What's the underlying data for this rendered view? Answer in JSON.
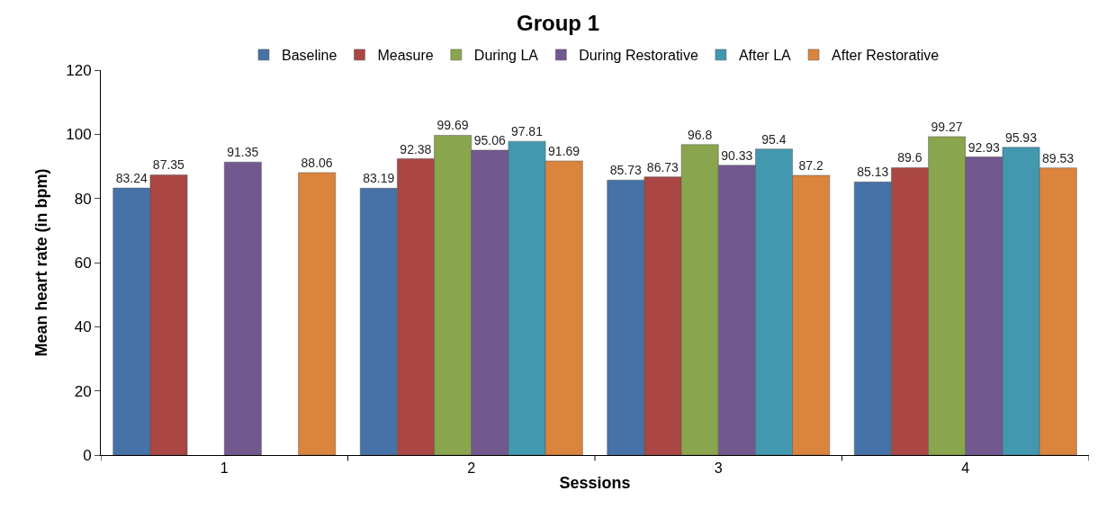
{
  "chart_data": {
    "type": "bar",
    "title": "Group 1",
    "xlabel": "Sessions",
    "ylabel": "Mean heart rate (in bpm)",
    "categories": [
      "1",
      "2",
      "3",
      "4"
    ],
    "series": [
      {
        "name": "Baseline",
        "color": "#4572a7",
        "values": [
          83.24,
          83.19,
          85.73,
          85.13
        ]
      },
      {
        "name": "Measure",
        "color": "#aa4643",
        "values": [
          87.35,
          92.38,
          86.73,
          89.6
        ]
      },
      {
        "name": "During LA",
        "color": "#89a54e",
        "values": [
          null,
          99.69,
          96.8,
          99.27
        ]
      },
      {
        "name": "During Restorative",
        "color": "#71588f",
        "values": [
          91.35,
          95.06,
          90.33,
          92.93
        ]
      },
      {
        "name": "After LA",
        "color": "#4198af",
        "values": [
          null,
          97.81,
          95.4,
          95.93
        ]
      },
      {
        "name": "After Restorative",
        "color": "#db843d",
        "values": [
          88.06,
          91.69,
          87.2,
          89.53
        ]
      }
    ],
    "ylim": [
      0,
      120
    ],
    "yticks": [
      0,
      20,
      40,
      60,
      80,
      100,
      120
    ],
    "data_labels": true,
    "legend": "top"
  }
}
